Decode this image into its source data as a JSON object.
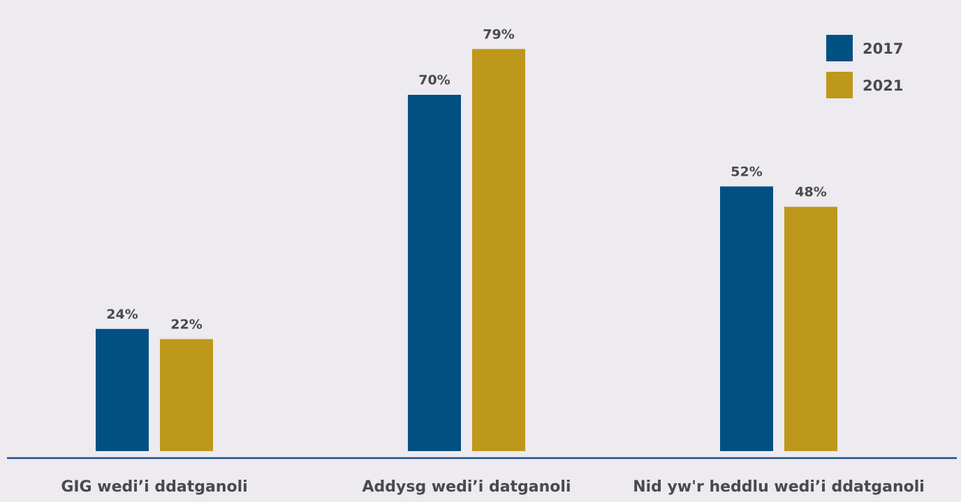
{
  "chart_data": {
    "type": "bar",
    "categories": [
      "GIG wedi’i ddatganoli",
      "Addysg wedi’i datganoli",
      "Nid yw'r heddlu wedi’i ddatganoli"
    ],
    "series": [
      {
        "name": "2017",
        "color": "#005082",
        "values": [
          24,
          70,
          52
        ],
        "labels": [
          "24%",
          "70%",
          "52%"
        ]
      },
      {
        "name": "2021",
        "color": "#bd981a",
        "values": [
          22,
          79,
          48
        ],
        "labels": [
          "22%",
          "79%",
          "48%"
        ]
      }
    ],
    "ylim": [
      0,
      100
    ],
    "grid": false,
    "legend_position": "top-right",
    "axis_color": "#1a4f86",
    "label_color": "#4a4a4a",
    "background": "#edeaf0"
  }
}
